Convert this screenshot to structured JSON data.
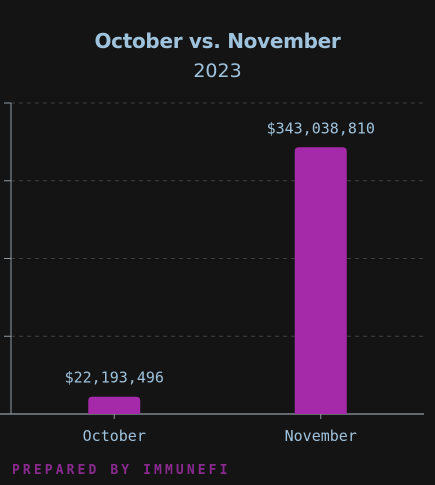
{
  "chart_data": {
    "type": "bar",
    "title": "October vs. November",
    "subtitle": "2023",
    "categories": [
      "October",
      "November"
    ],
    "values": [
      22193496,
      343038810
    ],
    "value_labels": [
      "$22,193,496",
      "$343,038,810"
    ],
    "ylim": [
      0,
      400000000
    ],
    "grid": true,
    "legend": "none",
    "xlabel": "",
    "ylabel": ""
  },
  "colors": {
    "bar": "#a52aa9",
    "text": "#9fc3dc",
    "axis": "#8f9aa3",
    "grid": "#3e3e3e",
    "footer": "#8a2a8f",
    "background": "#141414"
  },
  "footer": {
    "text": "PREPARED BY IMMUNEFI"
  }
}
